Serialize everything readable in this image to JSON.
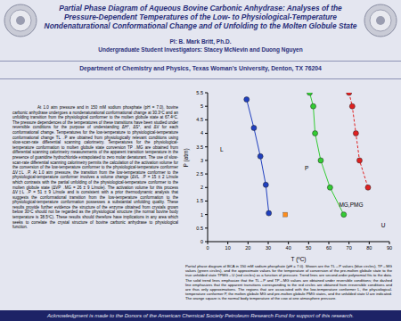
{
  "header": {
    "title": "Partial Phase Diagram of Aqueous Bovine Carbonic Anhydrase: Analyses of the Pressure-Dependent Temperatures of the Low- to Physiological-Temperature Nondenaturational Conformational Change and of Unfolding to the Molten Globule State",
    "pi": "PI: B. Mark Britt, Ph.D.",
    "students": "Undergraduate Student Investigators: Stacey McNevin and Duong Nguyen",
    "department": "Department of Chemistry and Physics, Texas Woman's University, Denton, TX  76204"
  },
  "abstract": "At 1.0 atm pressure and in 150 mM sodium phosphate (pH = 7.0), bovine carbonic anhydrase undergoes a nondenaturational conformational change at 30.3ºC and an unfolding transition from the physiological conformer to the molten globule state at 67.4ºC. The pressure dependences of the temperatures of these transitions have been studied under reversible conditions for the purpose of understanding ΔH°, ΔS°, and ΔV for each conformational change. Temperatures for the low-temperature to physiological-temperature conformational change TL→P are obtained from physiologically relevant conditions using slow-scan-rate differential scanning calorimetry. Temperatures for the physiological-temperature conformation to molten globule state conversion TP→MG are obtained from differential scanning calorimetry measurements of the apparent transition temperature in the presence of guanidine hydrochloride extrapolated to zero molar denaturant. The use of slow-scan-rate differential scanning calorimetry permits the calculation of the activation volume for the conversion of the low-temperature conformer to the physiological-temperature conformer ΔV‡L→P. At 1.0 atm pressure, the transition from the low-temperature conformer to the physiological-temperature conformer involves a volume change (ΔVL→P = 15 ± 2 L/mole which contrasts with the partial unfolding of the physiological-temperature conformer to the molten globule state (ΔVP→MG = 26 ± 9 L/mole). The activation volume for this process ΔV‡L→P = 51 ± 9 L/mole and is consistent with a prior thermodynamic analysis that suggests the conformational transition from the low-temperature conformation to the physiological-temperature conformation possesses a substantial unfolding quality. These results provide further evidence the structure of the enzyme obtained from crystals grown below 30ºC should not be regarded as the physiological structure (the normal bovine body temperature is 38.5ºC). These results should therefore have implications in any area which seeks to correlate the crystal structure of bovine carbonic anhydrase to physiological function.",
  "chart_data": {
    "type": "scatter",
    "xlabel": "T (ºC)",
    "ylabel": "P (atm)",
    "xlim": [
      0,
      90
    ],
    "xticks": [
      0,
      10,
      20,
      30,
      40,
      50,
      60,
      70,
      80,
      90
    ],
    "ylim": [
      0,
      5.5
    ],
    "yticks": [
      0,
      0.5,
      1,
      1.5,
      2,
      2.5,
      3,
      3.5,
      4,
      4.5,
      5,
      5.5
    ],
    "series": [
      {
        "color": "#1f3fbf",
        "marker": "circle",
        "line_style": "solid",
        "x": [
          19.3,
          22.9,
          26.1,
          28.8,
          30.3
        ],
        "y": [
          5.25,
          4.2,
          3.15,
          2.1,
          1.05
        ]
      },
      {
        "color": "#33cc33",
        "marker": "circle",
        "line_style": "solid",
        "x": [
          50.5,
          52.3,
          53.2,
          56,
          60.6,
          67.4
        ],
        "y": [
          5.5,
          5,
          4,
          3,
          2,
          1
        ]
      },
      {
        "color": "#e02020",
        "marker": "circle",
        "line_style": "dashed",
        "x": [
          70,
          71.6,
          73.4,
          75.2,
          79.4
        ],
        "y": [
          5.5,
          5,
          4,
          3,
          2
        ]
      },
      {
        "color": "#ff8c1a",
        "marker": "square",
        "line_style": "none",
        "x": [
          38.5
        ],
        "y": [
          1
        ]
      }
    ],
    "annotations": [
      {
        "text": "L",
        "x": 7,
        "y": 3.4
      },
      {
        "text": "P",
        "x": 49,
        "y": 2.7
      },
      {
        "text": "MG,PMG",
        "x": 71,
        "y": 1.35
      },
      {
        "text": "U",
        "x": 87,
        "y": 0.6
      }
    ]
  },
  "caption": "Partial phase diagram of BCA in 150 mM sodium phosphate (pH = 7.0). Shown are the TL→P values (blue circles), TP→MG values (green circles), and the approximate values for the temperature of conversion of the pre-molten globule state to the true unfolded state TPMG→U (red circles) as a function of pressure. Trend lines are second-order polynomial fits to the data. The solid trend lines emphasize that the TL→P and TP→MG values are obtained under reversible conditions; the dashed line emphasizes that the apparent transitions corresponding to the red circles are obtained from irreversible conditions and are thus only approximations. The regions that are associated with the low-temperature conformer L, the physiological-temperature conformer P, the molten globule MG and pre-molten globule PMG states, and the unfolded state U are indicated. The orange square is the normal body temperature of the cow at one atmosphere pressure.",
  "footer": "Acknowledgment is made to the Donors of the American Chemical Society Petroleum Research Fund for support of this research."
}
